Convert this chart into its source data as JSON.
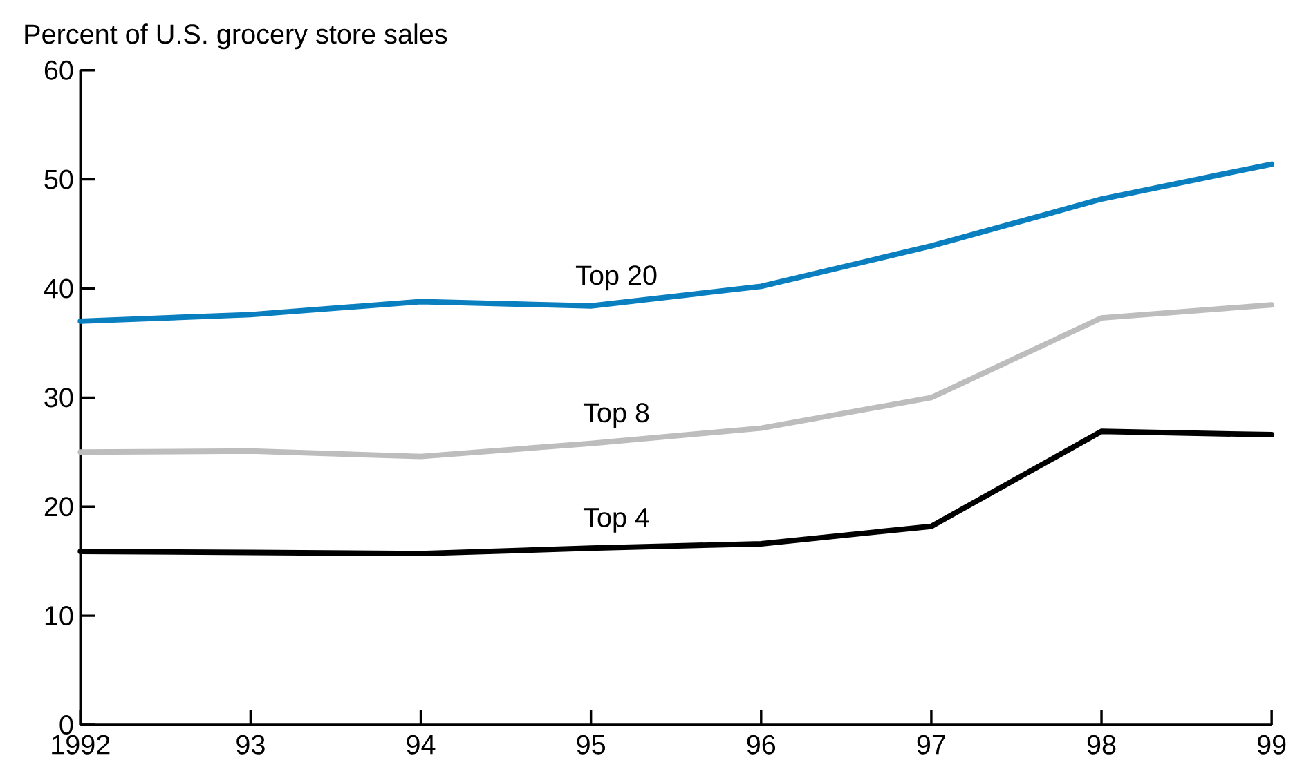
{
  "chart_data": {
    "type": "line",
    "ylabel": "Percent of U.S. grocery store sales",
    "categories": [
      "1992",
      "93",
      "94",
      "95",
      "96",
      "97",
      "98",
      "99"
    ],
    "series": [
      {
        "name": "Top 20",
        "color": "#0a7fc0",
        "values": [
          37.0,
          37.6,
          38.8,
          38.4,
          40.2,
          43.9,
          48.2,
          51.4
        ]
      },
      {
        "name": "Top 8",
        "color": "#bdbdbd",
        "values": [
          25.0,
          25.1,
          24.6,
          25.8,
          27.2,
          30.0,
          37.3,
          38.5
        ]
      },
      {
        "name": "Top 4",
        "color": "#000000",
        "values": [
          15.9,
          15.8,
          15.7,
          16.2,
          16.6,
          18.2,
          26.9,
          26.6
        ]
      }
    ],
    "ylim": [
      0,
      60
    ],
    "yticks": [
      0,
      10,
      20,
      30,
      40,
      50,
      60
    ],
    "grid": false,
    "marker": "none",
    "line_style": "solid"
  }
}
